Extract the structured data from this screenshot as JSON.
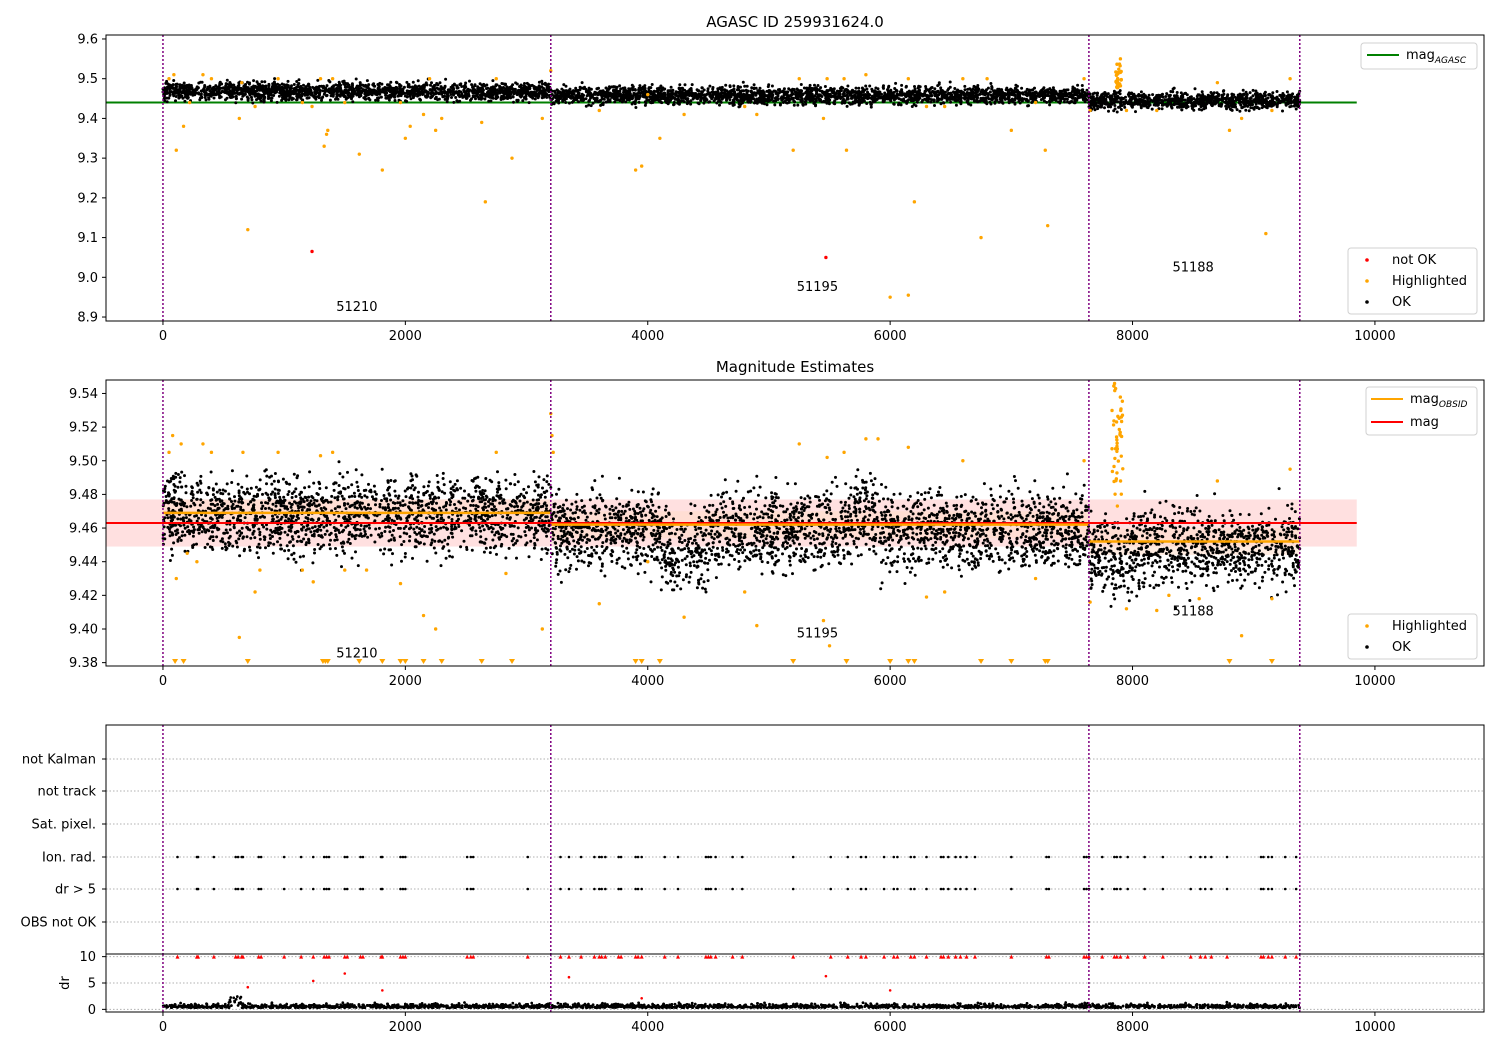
{
  "colors": {
    "ok": "#000000",
    "highlighted": "#ffa500",
    "not_ok": "#ff0000",
    "mag_agasc": "#008000",
    "mag": "#ff0000",
    "mag_obsid": "#ffa500",
    "obs_divider": "#800080",
    "band_red": "#ffcccc",
    "band_orange": "#ffdcc8",
    "grid": "#b0b0b0"
  },
  "chart_data": [
    {
      "type": "scatter",
      "title": "AGASC ID 259931624.0",
      "xlim": [
        -470,
        10900
      ],
      "ylim": [
        8.89,
        9.61
      ],
      "xticks": [
        "0",
        "2000",
        "4000",
        "6000",
        "8000",
        "10000"
      ],
      "yticks": [
        "8.9",
        "9.0",
        "9.1",
        "9.2",
        "9.3",
        "9.4",
        "9.5",
        "9.6"
      ],
      "mag_agasc": 9.44,
      "mag_agasc_x_range": [
        -470,
        9850
      ],
      "legend_top": {
        "placement": "upper right",
        "entries": [
          {
            "label": "mag",
            "sub": "AGASC"
          }
        ]
      },
      "legend_bottom": {
        "placement": "lower right",
        "entries": [
          "not OK",
          "Highlighted",
          "OK"
        ]
      },
      "obs_boundaries": [
        0,
        3200,
        7640,
        9380
      ],
      "obsid_labels": [
        {
          "text": "51210",
          "x": 1600,
          "y": 8.915
        },
        {
          "text": "51195",
          "x": 5400,
          "y": 8.965
        },
        {
          "text": "51188",
          "x": 8500,
          "y": 9.015
        }
      ],
      "not_ok_points": [
        [
          1230,
          9.065
        ],
        [
          5470,
          9.05
        ]
      ],
      "highlighted_points": [
        [
          50,
          9.5
        ],
        [
          90,
          9.51
        ],
        [
          110,
          9.32
        ],
        [
          170,
          9.38
        ],
        [
          220,
          9.44
        ],
        [
          330,
          9.51
        ],
        [
          400,
          9.5
        ],
        [
          630,
          9.4
        ],
        [
          650,
          9.49
        ],
        [
          700,
          9.12
        ],
        [
          760,
          9.43
        ],
        [
          950,
          9.5
        ],
        [
          1150,
          9.44
        ],
        [
          1230,
          9.43
        ],
        [
          1300,
          9.5
        ],
        [
          1330,
          9.33
        ],
        [
          1350,
          9.36
        ],
        [
          1360,
          9.37
        ],
        [
          1400,
          9.5
        ],
        [
          1500,
          9.44
        ],
        [
          1620,
          9.31
        ],
        [
          1810,
          9.27
        ],
        [
          1960,
          9.44
        ],
        [
          2000,
          9.35
        ],
        [
          2040,
          9.38
        ],
        [
          2150,
          9.41
        ],
        [
          2200,
          9.5
        ],
        [
          2250,
          9.37
        ],
        [
          2300,
          9.4
        ],
        [
          2630,
          9.39
        ],
        [
          2660,
          9.19
        ],
        [
          2750,
          9.5
        ],
        [
          2880,
          9.3
        ],
        [
          3130,
          9.4
        ],
        [
          3200,
          9.52
        ],
        [
          3600,
          9.42
        ],
        [
          3900,
          9.27
        ],
        [
          3950,
          9.28
        ],
        [
          4000,
          9.46
        ],
        [
          4100,
          9.35
        ],
        [
          4300,
          9.41
        ],
        [
          4800,
          9.43
        ],
        [
          4900,
          9.41
        ],
        [
          5200,
          9.32
        ],
        [
          5250,
          9.5
        ],
        [
          5450,
          9.4
        ],
        [
          5480,
          9.5
        ],
        [
          5620,
          9.5
        ],
        [
          5640,
          9.32
        ],
        [
          5800,
          9.51
        ],
        [
          6000,
          8.95
        ],
        [
          6150,
          8.955
        ],
        [
          6150,
          9.5
        ],
        [
          6200,
          9.19
        ],
        [
          6300,
          9.43
        ],
        [
          6450,
          9.43
        ],
        [
          6600,
          9.5
        ],
        [
          6750,
          9.1
        ],
        [
          6800,
          9.5
        ],
        [
          7000,
          9.37
        ],
        [
          7200,
          9.44
        ],
        [
          7280,
          9.32
        ],
        [
          7300,
          9.13
        ],
        [
          7600,
          9.5
        ],
        [
          7650,
          9.42
        ],
        [
          7900,
          9.55
        ],
        [
          7950,
          9.42
        ],
        [
          8200,
          9.42
        ],
        [
          8700,
          9.49
        ],
        [
          8800,
          9.37
        ],
        [
          8900,
          9.4
        ],
        [
          9100,
          9.11
        ],
        [
          9150,
          9.42
        ],
        [
          9300,
          9.5
        ]
      ],
      "ok_band": {
        "x_range": [
          0,
          9380
        ],
        "note_center_by_obs": [
          9.468,
          9.458,
          9.445
        ],
        "spread": 0.022
      }
    },
    {
      "type": "scatter",
      "title": "Magnitude Estimates",
      "xlim": [
        -470,
        10900
      ],
      "ylim": [
        9.378,
        9.548
      ],
      "xticks": [
        "0",
        "2000",
        "4000",
        "6000",
        "8000",
        "10000"
      ],
      "yticks": [
        "9.38",
        "9.40",
        "9.42",
        "9.44",
        "9.46",
        "9.48",
        "9.50",
        "9.52",
        "9.54"
      ],
      "mag": 9.463,
      "mag_band": [
        9.449,
        9.477
      ],
      "mag_x_range": [
        -470,
        9850
      ],
      "mag_obsid_segments": [
        {
          "x": [
            0,
            3200
          ],
          "y": 9.469
        },
        {
          "x": [
            3200,
            7640
          ],
          "y": 9.462
        },
        {
          "x": [
            7640,
            9380
          ],
          "y": 9.452
        }
      ],
      "legend_top": {
        "placement": "upper right",
        "entries": [
          {
            "label": "mag",
            "sub": "OBSID"
          },
          {
            "label": "mag",
            "sub": ""
          }
        ]
      },
      "legend_bottom": {
        "placement": "lower right",
        "entries": [
          "Highlighted",
          "OK"
        ]
      },
      "obs_boundaries": [
        0,
        3200,
        7640,
        9380
      ],
      "obsid_labels": [
        {
          "text": "51210",
          "x": 1600,
          "y": 9.383
        },
        {
          "text": "51195",
          "x": 5400,
          "y": 9.395
        },
        {
          "text": "51188",
          "x": 8500,
          "y": 9.408
        }
      ],
      "clipped_markers_x": [
        100,
        170,
        700,
        1320,
        1340,
        1360,
        1620,
        1810,
        1960,
        2000,
        2150,
        2300,
        2630,
        2880,
        3900,
        3950,
        4100,
        5200,
        5640,
        6000,
        6150,
        6200,
        6750,
        7000,
        7280,
        7300,
        8800,
        9150
      ],
      "highlighted_points": [
        [
          50,
          9.505
        ],
        [
          80,
          9.515
        ],
        [
          110,
          9.43
        ],
        [
          150,
          9.51
        ],
        [
          200,
          9.445
        ],
        [
          280,
          9.44
        ],
        [
          330,
          9.51
        ],
        [
          400,
          9.505
        ],
        [
          630,
          9.395
        ],
        [
          660,
          9.505
        ],
        [
          760,
          9.422
        ],
        [
          800,
          9.435
        ],
        [
          950,
          9.505
        ],
        [
          1150,
          9.435
        ],
        [
          1240,
          9.428
        ],
        [
          1300,
          9.503
        ],
        [
          1400,
          9.505
        ],
        [
          1500,
          9.435
        ],
        [
          1680,
          9.435
        ],
        [
          1960,
          9.427
        ],
        [
          2150,
          9.408
        ],
        [
          2250,
          9.4
        ],
        [
          2750,
          9.505
        ],
        [
          2830,
          9.433
        ],
        [
          3130,
          9.4
        ],
        [
          3200,
          9.528
        ],
        [
          3210,
          9.515
        ],
        [
          3220,
          9.505
        ],
        [
          3600,
          9.415
        ],
        [
          4000,
          9.44
        ],
        [
          4300,
          9.407
        ],
        [
          4800,
          9.422
        ],
        [
          4900,
          9.402
        ],
        [
          5250,
          9.51
        ],
        [
          5450,
          9.405
        ],
        [
          5480,
          9.502
        ],
        [
          5500,
          9.39
        ],
        [
          5620,
          9.505
        ],
        [
          5800,
          9.513
        ],
        [
          5900,
          9.513
        ],
        [
          6150,
          9.508
        ],
        [
          6300,
          9.419
        ],
        [
          6450,
          9.422
        ],
        [
          6600,
          9.5
        ],
        [
          7200,
          9.43
        ],
        [
          7600,
          9.5
        ],
        [
          7650,
          9.416
        ],
        [
          7950,
          9.412
        ],
        [
          8200,
          9.411
        ],
        [
          8300,
          9.42
        ],
        [
          8550,
          9.418
        ],
        [
          8700,
          9.488
        ],
        [
          8900,
          9.396
        ],
        [
          9150,
          9.418
        ],
        [
          9300,
          9.495
        ]
      ],
      "spike": {
        "x_range": [
          7830,
          7920
        ],
        "y_range": [
          9.47,
          9.548
        ]
      }
    },
    {
      "type": "scatter",
      "title": "",
      "xlim": [
        -470,
        10900
      ],
      "xticks": [
        "0",
        "2000",
        "4000",
        "6000",
        "8000",
        "10000"
      ],
      "flag_rows": [
        "not Kalman",
        "not track",
        "Sat. pixel.",
        "Ion. rad.",
        "dr > 5",
        "OBS not OK"
      ],
      "flag_points_x": [
        120,
        280,
        290,
        420,
        600,
        620,
        650,
        660,
        790,
        810,
        1000,
        1140,
        1240,
        1330,
        1350,
        1370,
        1500,
        1520,
        1630,
        1650,
        1800,
        1810,
        1960,
        1980,
        2000,
        2510,
        2540,
        2560,
        3010,
        3280,
        3350,
        3450,
        3560,
        3600,
        3620,
        3650,
        3760,
        3780,
        3900,
        3920,
        3950,
        4140,
        4250,
        4480,
        4500,
        4520,
        4560,
        4700,
        4780,
        5200,
        5510,
        5650,
        5760,
        5800,
        5950,
        6030,
        6060,
        6170,
        6200,
        6300,
        6420,
        6440,
        6480,
        6540,
        6580,
        6630,
        6700,
        7000,
        7290,
        7310,
        7600,
        7620,
        7640,
        7750,
        7850,
        7870,
        7900,
        7960,
        8100,
        8250,
        8480,
        8560,
        8600,
        8650,
        8780,
        9060,
        9080,
        9120,
        9150,
        9260,
        9350
      ],
      "dr_panel": {
        "ylabel": "dr",
        "yticks": [
          "0",
          "5",
          "10"
        ],
        "ylim": [
          -0.5,
          10.5
        ],
        "clip_value": 10,
        "outliers": [
          [
            700,
            4.2
          ],
          [
            1240,
            5.4
          ],
          [
            1500,
            6.8
          ],
          [
            1810,
            3.6
          ],
          [
            3350,
            6.1
          ],
          [
            3950,
            2.1
          ],
          [
            5470,
            6.3
          ],
          [
            6000,
            3.6
          ]
        ]
      },
      "obs_boundaries": [
        0,
        3200,
        7640,
        9380
      ]
    }
  ]
}
